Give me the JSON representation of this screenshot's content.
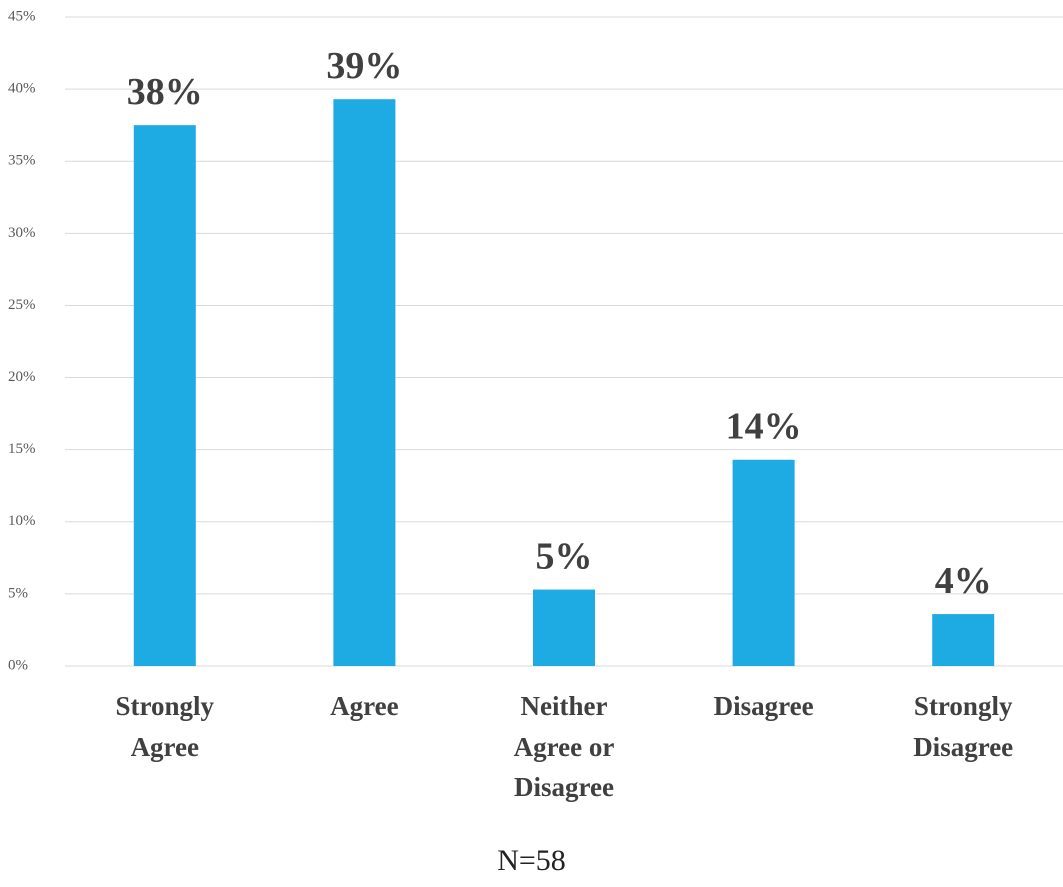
{
  "chart_data": {
    "type": "bar",
    "categories": [
      "Strongly Agree",
      "Agree",
      "Neither Agree or Disagree",
      "Disagree",
      "Strongly Disagree"
    ],
    "values": [
      37.5,
      39.3,
      5.3,
      14.3,
      3.6
    ],
    "value_labels": [
      "38%",
      "39%",
      "5%",
      "14%",
      "4%"
    ],
    "color": "#1eaae2",
    "ylim": [
      0,
      45
    ],
    "yticks": [
      {
        "value": 0,
        "label": "0%"
      },
      {
        "value": 5,
        "label": "5%"
      },
      {
        "value": 10,
        "label": "10%"
      },
      {
        "value": 15,
        "label": "15%"
      },
      {
        "value": 20,
        "label": "20%"
      },
      {
        "value": 25,
        "label": "25%"
      },
      {
        "value": 30,
        "label": "30%"
      },
      {
        "value": 35,
        "label": "35%"
      },
      {
        "value": 40,
        "label": "40%"
      },
      {
        "value": 45,
        "label": "45%"
      }
    ],
    "grid": true,
    "annotation": "N=58"
  }
}
